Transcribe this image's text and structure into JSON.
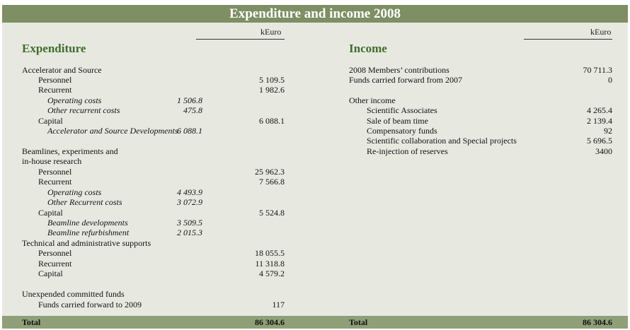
{
  "title": "Expenditure and income 2008",
  "unit_label": "kEuro",
  "expenditure": {
    "heading": "Expenditure",
    "rows": [
      {
        "label": "Accelerator and Source",
        "sub": "",
        "main": ""
      },
      {
        "label": "Personnel",
        "sub": "",
        "main": "5 109.5"
      },
      {
        "label": "Recurrent",
        "sub": "",
        "main": "1 982.6"
      },
      {
        "label": "Operating costs",
        "sub": "1 506.8",
        "main": ""
      },
      {
        "label": "Other recurrent costs",
        "sub": "475.8",
        "main": ""
      },
      {
        "label": "Capital",
        "sub": "",
        "main": "6 088.1"
      },
      {
        "label": "Accelerator and Source Developments",
        "sub": "6 088.1",
        "main": ""
      },
      {
        "label": "Beamlines, experiments and",
        "sub": "",
        "main": ""
      },
      {
        "label": "in-house research",
        "sub": "",
        "main": ""
      },
      {
        "label": "Personnel",
        "sub": "",
        "main": "25 962.3"
      },
      {
        "label": "Recurrent",
        "sub": "",
        "main": "7 566.8"
      },
      {
        "label": "Operating costs",
        "sub": "4 493.9",
        "main": ""
      },
      {
        "label": "Other Recurrent costs",
        "sub": "3 072.9",
        "main": ""
      },
      {
        "label": "Capital",
        "sub": "",
        "main": "5 524.8"
      },
      {
        "label": "Beamline developments",
        "sub": "3 509.5",
        "main": ""
      },
      {
        "label": "Beamline refurbishment",
        "sub": "2 015.3",
        "main": ""
      },
      {
        "label": "Technical and administrative supports",
        "sub": "",
        "main": ""
      },
      {
        "label": "Personnel",
        "sub": "",
        "main": "18 055.5"
      },
      {
        "label": "Recurrent",
        "sub": "",
        "main": "11 318.8"
      },
      {
        "label": "Capital",
        "sub": "",
        "main": "4 579.2"
      },
      {
        "label": "Unexpended committed funds",
        "sub": "",
        "main": ""
      },
      {
        "label": "Funds carried forward to 2009",
        "sub": "",
        "main": "117"
      }
    ],
    "total_label": "Total",
    "total_value": "86 304.6"
  },
  "income": {
    "heading": "Income",
    "rows": [
      {
        "label": "2008 Members’ contributions",
        "value": "70 711.3"
      },
      {
        "label": "Funds carried forward from 2007",
        "value": "0"
      },
      {
        "label": "Other income",
        "value": ""
      },
      {
        "label": "Scientific Associates",
        "value": "4 265.4"
      },
      {
        "label": "Sale of beam time",
        "value": "2 139.4"
      },
      {
        "label": "Compensatory funds",
        "value": "92"
      },
      {
        "label": "Scientific collaboration and Special projects",
        "value": "5 696.5"
      },
      {
        "label": "Re-injection of reserves",
        "value": "3400"
      }
    ],
    "total_label": "Total",
    "total_value": "86 304.6"
  }
}
